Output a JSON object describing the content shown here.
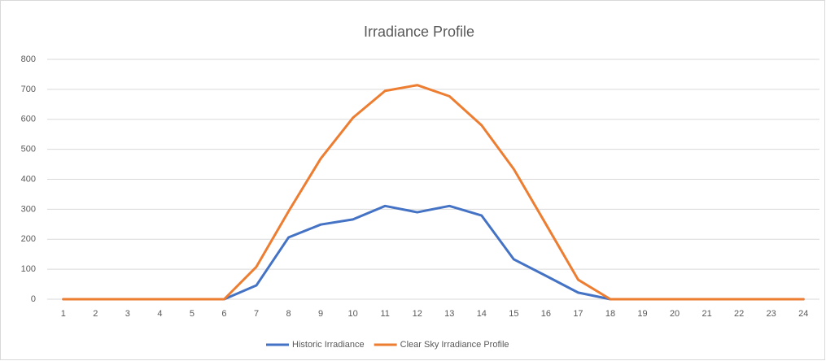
{
  "chart_data": {
    "type": "line",
    "title": "Irradiance Profile",
    "categories": [
      "1",
      "2",
      "3",
      "4",
      "5",
      "6",
      "7",
      "8",
      "9",
      "10",
      "11",
      "12",
      "13",
      "14",
      "15",
      "16",
      "17",
      "18",
      "19",
      "20",
      "21",
      "22",
      "23",
      "24"
    ],
    "series": [
      {
        "name": "Historic Irradiance",
        "color": "#4472c4",
        "values": [
          0,
          0,
          0,
          0,
          0,
          0,
          46,
          206,
          249,
          266,
          311,
          290,
          311,
          279,
          133,
          78,
          22,
          0,
          0,
          0,
          0,
          0,
          0,
          0
        ]
      },
      {
        "name": "Clear Sky Irradiance Profile",
        "color": "#ed7d31",
        "values": [
          0,
          0,
          0,
          0,
          0,
          0,
          108,
          293,
          469,
          605,
          695,
          714,
          677,
          580,
          434,
          250,
          65,
          0,
          0,
          0,
          0,
          0,
          0,
          0
        ]
      }
    ],
    "ylim": [
      0,
      800
    ],
    "yticks": [
      0,
      100,
      200,
      300,
      400,
      500,
      600,
      700,
      800
    ],
    "grid": true,
    "legend": "bottom"
  }
}
